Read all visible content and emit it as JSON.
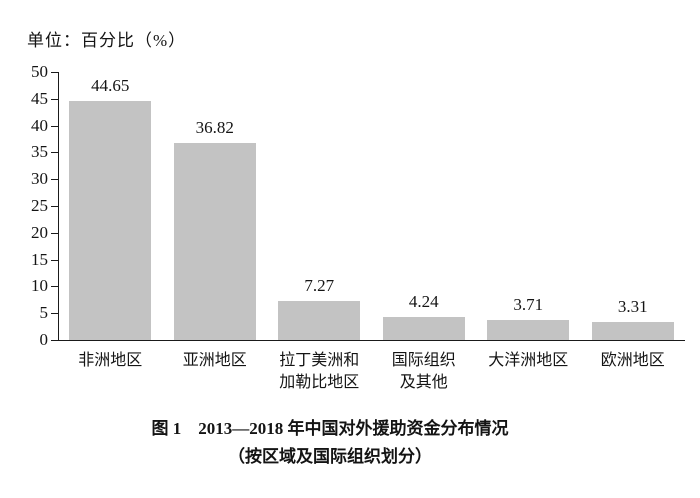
{
  "unit_label": "单位：百分比（%）",
  "caption": {
    "line1": "图 1　2013—2018 年中国对外援助资金分布情况",
    "line2": "（按区域及国际组织划分）"
  },
  "chart_data": {
    "type": "bar",
    "title": "图 1 2013—2018 年中国对外援助资金分布情况（按区域及国际组织划分）",
    "unit": "单位：百分比（%）",
    "categories": [
      "非洲地区",
      "亚洲地区",
      "拉丁美洲和\n加勒比地区",
      "国际组织\n及其他",
      "大洋洲地区",
      "欧洲地区"
    ],
    "values": [
      44.65,
      36.82,
      7.27,
      4.24,
      3.71,
      3.31
    ],
    "value_labels": [
      "44.65",
      "36.82",
      "7.27",
      "4.24",
      "3.71",
      "3.31"
    ],
    "ylabel": "",
    "xlabel": "",
    "ylim": [
      0,
      50
    ],
    "ytick_step": 5,
    "yticks": [
      0,
      5,
      10,
      15,
      20,
      25,
      30,
      35,
      40,
      45,
      50
    ],
    "grid": false,
    "bar_color": "#c3c3c3"
  }
}
